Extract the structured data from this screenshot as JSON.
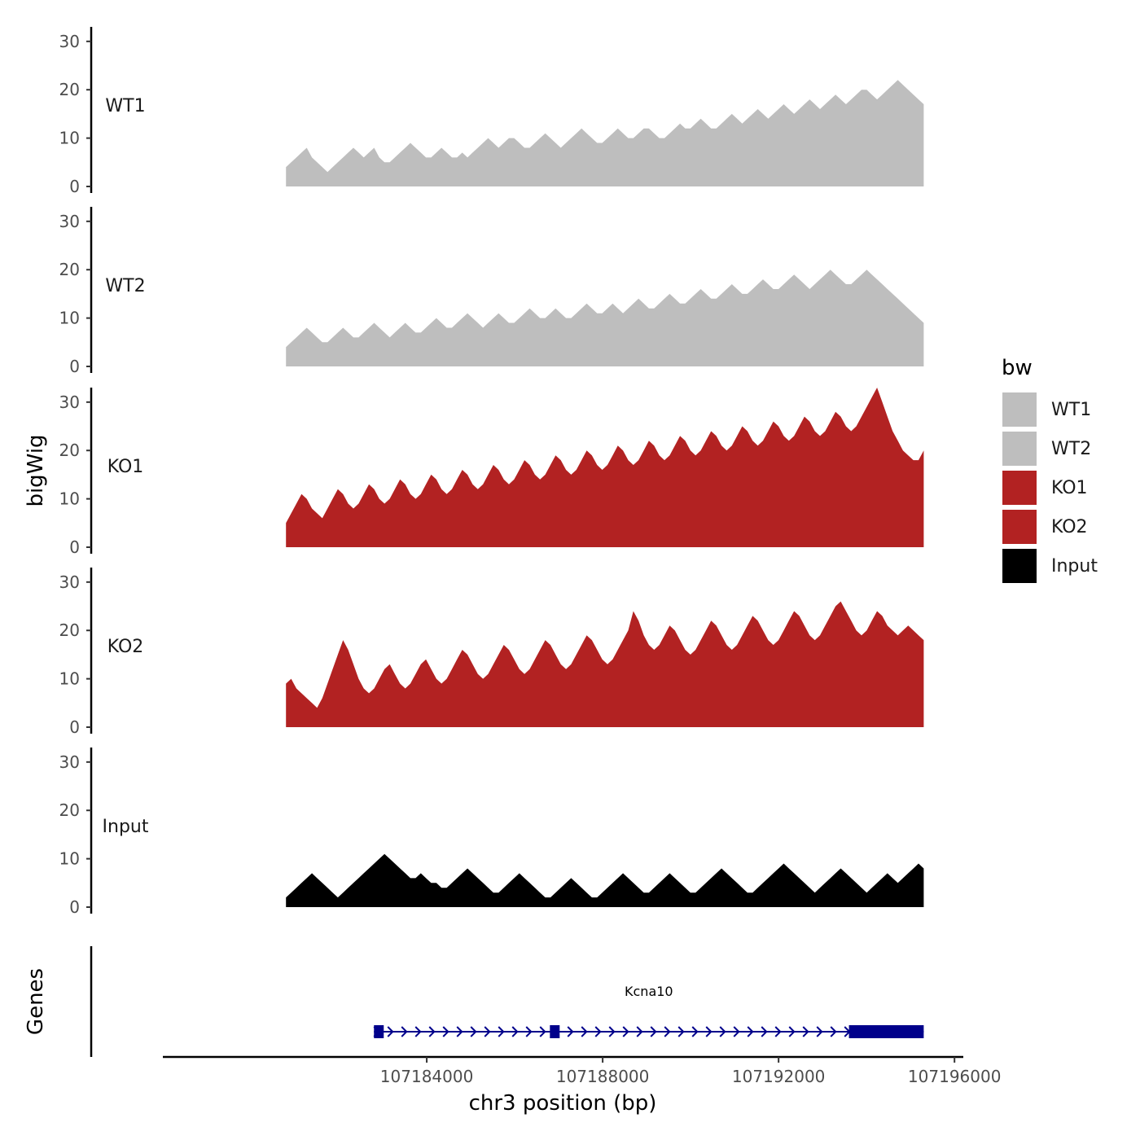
{
  "chart_data": {
    "type": "area",
    "ylabel": "bigWig",
    "genes_label": "Genes",
    "xlabel": "chr3 position (bp)",
    "xlim": [
      107178000,
      107196200
    ],
    "data_range": [
      107180800,
      107195300
    ],
    "ylim": [
      0,
      33
    ],
    "y_ticks": [
      0,
      10,
      20,
      30
    ],
    "x_ticks": [
      107184000,
      107188000,
      107192000,
      107196000
    ],
    "x_tick_labels": [
      "107184000",
      "107188000",
      "107192000",
      "107196000"
    ],
    "legend": {
      "title": "bw",
      "entries": [
        {
          "label": "WT1",
          "color": "#bebebe"
        },
        {
          "label": "WT2",
          "color": "#bebebe"
        },
        {
          "label": "KO1",
          "color": "#b22222"
        },
        {
          "label": "KO2",
          "color": "#b22222"
        },
        {
          "label": "Input",
          "color": "#000000"
        }
      ]
    },
    "series": [
      {
        "name": "WT1",
        "color": "#bebebe",
        "values": [
          4,
          5,
          6,
          7,
          8,
          6,
          5,
          4,
          3,
          4,
          5,
          6,
          7,
          8,
          7,
          6,
          7,
          8,
          6,
          5,
          5,
          6,
          7,
          8,
          9,
          8,
          7,
          6,
          6,
          7,
          8,
          7,
          6,
          6,
          7,
          6,
          7,
          8,
          9,
          10,
          9,
          8,
          9,
          10,
          10,
          9,
          8,
          8,
          9,
          10,
          11,
          10,
          9,
          8,
          9,
          10,
          11,
          12,
          11,
          10,
          9,
          9,
          10,
          11,
          12,
          11,
          10,
          10,
          11,
          12,
          12,
          11,
          10,
          10,
          11,
          12,
          13,
          12,
          12,
          13,
          14,
          13,
          12,
          12,
          13,
          14,
          15,
          14,
          13,
          14,
          15,
          16,
          15,
          14,
          15,
          16,
          17,
          16,
          15,
          16,
          17,
          18,
          17,
          16,
          17,
          18,
          19,
          18,
          17,
          18,
          19,
          20,
          20,
          19,
          18,
          19,
          20,
          21,
          22,
          21,
          20,
          19,
          18,
          17
        ]
      },
      {
        "name": "WT2",
        "color": "#bebebe",
        "values": [
          4,
          5,
          6,
          7,
          8,
          7,
          6,
          5,
          5,
          6,
          7,
          8,
          7,
          6,
          6,
          7,
          8,
          9,
          8,
          7,
          6,
          7,
          8,
          9,
          8,
          7,
          7,
          8,
          9,
          10,
          9,
          8,
          8,
          9,
          10,
          11,
          10,
          9,
          8,
          9,
          10,
          11,
          10,
          9,
          9,
          10,
          11,
          12,
          11,
          10,
          10,
          11,
          12,
          11,
          10,
          10,
          11,
          12,
          13,
          12,
          11,
          11,
          12,
          13,
          12,
          11,
          12,
          13,
          14,
          13,
          12,
          12,
          13,
          14,
          15,
          14,
          13,
          13,
          14,
          15,
          16,
          15,
          14,
          14,
          15,
          16,
          17,
          16,
          15,
          15,
          16,
          17,
          18,
          17,
          16,
          16,
          17,
          18,
          19,
          18,
          17,
          16,
          17,
          18,
          19,
          20,
          19,
          18,
          17,
          17,
          18,
          19,
          20,
          19,
          18,
          17,
          16,
          15,
          14,
          13,
          12,
          11,
          10,
          9
        ]
      },
      {
        "name": "KO1",
        "color": "#b22222",
        "values": [
          5,
          7,
          9,
          11,
          10,
          8,
          7,
          6,
          8,
          10,
          12,
          11,
          9,
          8,
          9,
          11,
          13,
          12,
          10,
          9,
          10,
          12,
          14,
          13,
          11,
          10,
          11,
          13,
          15,
          14,
          12,
          11,
          12,
          14,
          16,
          15,
          13,
          12,
          13,
          15,
          17,
          16,
          14,
          13,
          14,
          16,
          18,
          17,
          15,
          14,
          15,
          17,
          19,
          18,
          16,
          15,
          16,
          18,
          20,
          19,
          17,
          16,
          17,
          19,
          21,
          20,
          18,
          17,
          18,
          20,
          22,
          21,
          19,
          18,
          19,
          21,
          23,
          22,
          20,
          19,
          20,
          22,
          24,
          23,
          21,
          20,
          21,
          23,
          25,
          24,
          22,
          21,
          22,
          24,
          26,
          25,
          23,
          22,
          23,
          25,
          27,
          26,
          24,
          23,
          24,
          26,
          28,
          27,
          25,
          24,
          25,
          27,
          29,
          31,
          33,
          30,
          27,
          24,
          22,
          20,
          19,
          18,
          18,
          20
        ]
      },
      {
        "name": "KO2",
        "color": "#b22222",
        "values": [
          9,
          10,
          8,
          7,
          6,
          5,
          4,
          6,
          9,
          12,
          15,
          18,
          16,
          13,
          10,
          8,
          7,
          8,
          10,
          12,
          13,
          11,
          9,
          8,
          9,
          11,
          13,
          14,
          12,
          10,
          9,
          10,
          12,
          14,
          16,
          15,
          13,
          11,
          10,
          11,
          13,
          15,
          17,
          16,
          14,
          12,
          11,
          12,
          14,
          16,
          18,
          17,
          15,
          13,
          12,
          13,
          15,
          17,
          19,
          18,
          16,
          14,
          13,
          14,
          16,
          18,
          20,
          24,
          22,
          19,
          17,
          16,
          17,
          19,
          21,
          20,
          18,
          16,
          15,
          16,
          18,
          20,
          22,
          21,
          19,
          17,
          16,
          17,
          19,
          21,
          23,
          22,
          20,
          18,
          17,
          18,
          20,
          22,
          24,
          23,
          21,
          19,
          18,
          19,
          21,
          23,
          25,
          26,
          24,
          22,
          20,
          19,
          20,
          22,
          24,
          23,
          21,
          20,
          19,
          20,
          21,
          20,
          19,
          18
        ]
      },
      {
        "name": "Input",
        "color": "#000000",
        "values": [
          2,
          3,
          4,
          5,
          6,
          7,
          6,
          5,
          4,
          3,
          2,
          3,
          4,
          5,
          6,
          7,
          8,
          9,
          10,
          11,
          10,
          9,
          8,
          7,
          6,
          6,
          7,
          6,
          5,
          5,
          4,
          4,
          5,
          6,
          7,
          8,
          7,
          6,
          5,
          4,
          3,
          3,
          4,
          5,
          6,
          7,
          6,
          5,
          4,
          3,
          2,
          2,
          3,
          4,
          5,
          6,
          5,
          4,
          3,
          2,
          2,
          3,
          4,
          5,
          6,
          7,
          6,
          5,
          4,
          3,
          3,
          4,
          5,
          6,
          7,
          6,
          5,
          4,
          3,
          3,
          4,
          5,
          6,
          7,
          8,
          7,
          6,
          5,
          4,
          3,
          3,
          4,
          5,
          6,
          7,
          8,
          9,
          8,
          7,
          6,
          5,
          4,
          3,
          4,
          5,
          6,
          7,
          8,
          7,
          6,
          5,
          4,
          3,
          4,
          5,
          6,
          7,
          6,
          5,
          6,
          7,
          8,
          9,
          8
        ]
      }
    ],
    "gene": {
      "name": "Kcna10",
      "strand": "+",
      "start": 107182800,
      "end": 107195300,
      "exons": [
        [
          107182800,
          107183000
        ],
        [
          107186800,
          107187000
        ],
        [
          107193600,
          107195300
        ]
      ],
      "color": "#00008b"
    }
  }
}
